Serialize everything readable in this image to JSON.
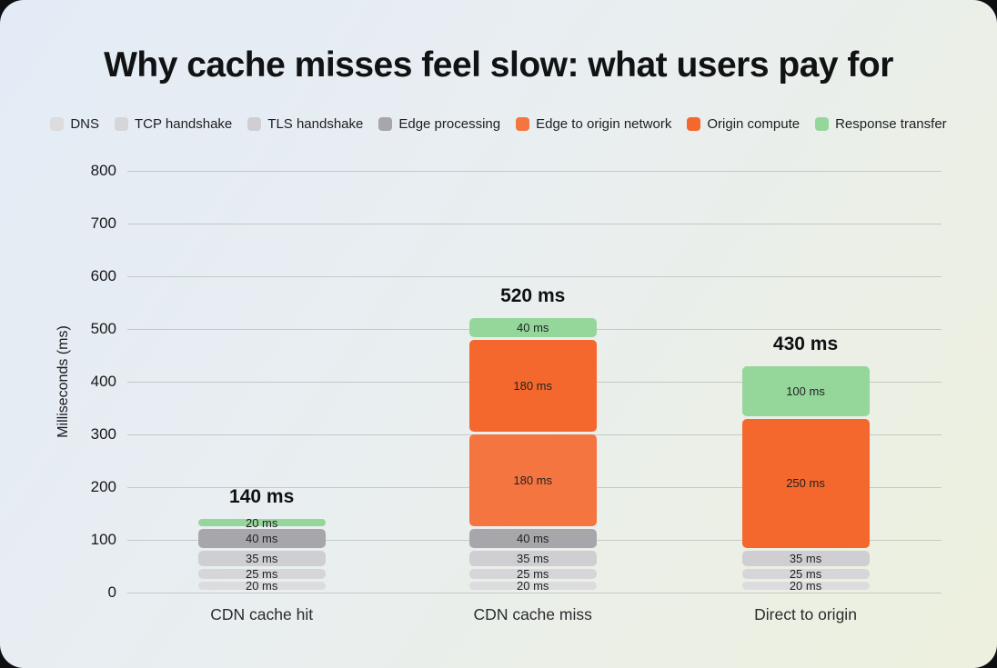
{
  "header": {
    "title": "Why cache misses feel slow: what users pay for"
  },
  "chart_data": {
    "type": "bar",
    "stacked": true,
    "title": "Why cache misses feel slow: what users pay for",
    "ylabel": "Milliseconds (ms)",
    "ylim": [
      0,
      800
    ],
    "ytick_step": 100,
    "grid": true,
    "legend_position": "top",
    "unit": "ms",
    "categories": [
      "CDN cache hit",
      "CDN cache miss",
      "Direct to origin"
    ],
    "bar_totals": [
      140,
      520,
      430
    ],
    "total_labels": [
      "140 ms",
      "520 ms",
      "430 ms"
    ],
    "series": [
      {
        "name": "DNS",
        "color": "#dcdcdf",
        "values": [
          20,
          20,
          20
        ]
      },
      {
        "name": "TCP handshake",
        "color": "#d6d6d9",
        "values": [
          25,
          25,
          25
        ]
      },
      {
        "name": "TLS handshake",
        "color": "#cfcfd3",
        "values": [
          35,
          35,
          35
        ]
      },
      {
        "name": "Edge processing",
        "color": "#a7a7ab",
        "values": [
          40,
          40,
          0
        ]
      },
      {
        "name": "Edge to origin network",
        "color": "#f57540",
        "values": [
          0,
          180,
          0
        ]
      },
      {
        "name": "Origin compute",
        "color": "#f4682d",
        "values": [
          0,
          180,
          250
        ]
      },
      {
        "name": "Response transfer",
        "color": "#95d79b",
        "values": [
          20,
          40,
          100
        ]
      }
    ]
  }
}
